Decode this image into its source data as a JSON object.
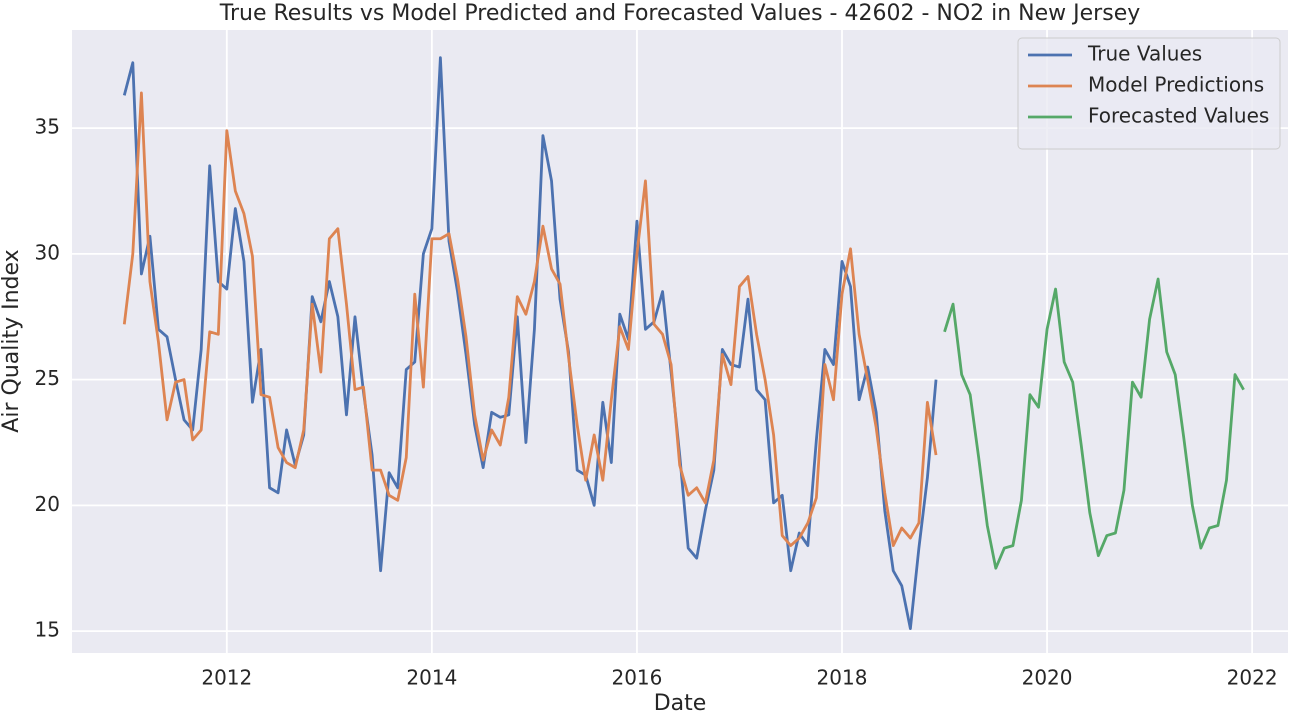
{
  "chart_data": {
    "type": "line",
    "title": "True Results vs Model Predicted and Forecasted Values - 42602 - NO2 in New Jersey",
    "x_label": "Date",
    "y_label": "Air Quality Index",
    "x": [
      2011,
      2011.083,
      2011.167,
      2011.25,
      2011.333,
      2011.417,
      2011.5,
      2011.583,
      2011.667,
      2011.75,
      2011.833,
      2011.917,
      2012,
      2012.083,
      2012.167,
      2012.25,
      2012.333,
      2012.417,
      2012.5,
      2012.583,
      2012.667,
      2012.75,
      2012.833,
      2012.917,
      2013,
      2013.083,
      2013.167,
      2013.25,
      2013.333,
      2013.417,
      2013.5,
      2013.583,
      2013.667,
      2013.75,
      2013.833,
      2013.917,
      2014,
      2014.083,
      2014.167,
      2014.25,
      2014.333,
      2014.417,
      2014.5,
      2014.583,
      2014.667,
      2014.75,
      2014.833,
      2014.917,
      2015,
      2015.083,
      2015.167,
      2015.25,
      2015.333,
      2015.417,
      2015.5,
      2015.583,
      2015.667,
      2015.75,
      2015.833,
      2015.917,
      2016,
      2016.083,
      2016.167,
      2016.25,
      2016.333,
      2016.417,
      2016.5,
      2016.583,
      2016.667,
      2016.75,
      2016.833,
      2016.917,
      2017,
      2017.083,
      2017.167,
      2017.25,
      2017.333,
      2017.417,
      2017.5,
      2017.583,
      2017.667,
      2017.75,
      2017.833,
      2017.917,
      2018,
      2018.083,
      2018.167,
      2018.25,
      2018.333,
      2018.417,
      2018.5,
      2018.583,
      2018.667,
      2018.75,
      2018.833,
      2018.917,
      2019,
      2019.083,
      2019.167,
      2019.25,
      2019.333,
      2019.417,
      2019.5,
      2019.583,
      2019.667,
      2019.75,
      2019.833,
      2019.917,
      2020,
      2020.083,
      2020.167,
      2020.25,
      2020.333,
      2020.417,
      2020.5,
      2020.583,
      2020.667,
      2020.75,
      2020.833,
      2020.917,
      2021,
      2021.083,
      2021.167,
      2021.25,
      2021.333,
      2021.417,
      2021.5,
      2021.583,
      2021.667,
      2021.75,
      2021.833,
      2021.917
    ],
    "series": [
      {
        "name": "True Values",
        "color": "#4c72b0",
        "values": [
          36.3,
          37.6,
          29.2,
          30.7,
          27.0,
          26.7,
          25.0,
          23.4,
          23.0,
          26.2,
          33.5,
          28.9,
          28.6,
          31.8,
          29.7,
          24.1,
          26.2,
          20.7,
          20.5,
          23.0,
          21.6,
          22.8,
          28.3,
          27.3,
          28.9,
          27.5,
          23.6,
          27.5,
          24.5,
          22.0,
          17.4,
          21.3,
          20.7,
          25.4,
          25.7,
          30.0,
          31.0,
          37.8,
          30.5,
          28.5,
          26.0,
          23.2,
          21.5,
          23.7,
          23.5,
          23.6,
          27.5,
          22.5,
          27.0,
          34.7,
          32.9,
          28.2,
          26.1,
          21.4,
          21.2,
          20.0,
          24.1,
          21.7,
          27.6,
          26.6,
          31.3,
          27.0,
          27.3,
          28.5,
          25.3,
          22.0,
          18.3,
          17.9,
          19.8,
          21.4,
          26.2,
          25.6,
          25.5,
          28.2,
          24.6,
          24.2,
          20.1,
          20.4,
          17.4,
          18.9,
          18.4,
          22.6,
          26.2,
          25.6,
          29.7,
          28.7,
          24.2,
          25.5,
          23.7,
          19.8,
          17.4,
          16.8,
          15.1,
          18.3,
          21.1,
          25.0,
          null,
          null,
          null,
          null,
          null,
          null,
          null,
          null,
          null,
          null,
          null,
          null,
          null,
          null,
          null,
          null,
          null,
          null,
          null,
          null,
          null,
          null,
          null,
          null,
          null,
          null,
          null,
          null,
          null,
          null,
          null,
          null,
          null,
          null,
          null,
          null
        ]
      },
      {
        "name": "Model Predictions",
        "color": "#dd8452",
        "values": [
          27.2,
          30.0,
          36.4,
          28.9,
          26.5,
          23.4,
          24.9,
          25.0,
          22.6,
          23.0,
          26.9,
          26.8,
          34.9,
          32.5,
          31.6,
          29.9,
          24.4,
          24.3,
          22.3,
          21.7,
          21.5,
          23.0,
          28.0,
          25.3,
          30.6,
          31.0,
          28.0,
          24.6,
          24.7,
          21.4,
          21.4,
          20.4,
          20.2,
          21.9,
          28.4,
          24.7,
          30.6,
          30.6,
          30.8,
          29.0,
          26.7,
          23.6,
          21.8,
          23.0,
          22.4,
          24.3,
          28.3,
          27.6,
          28.9,
          31.1,
          29.4,
          28.8,
          25.9,
          23.2,
          21.0,
          22.8,
          21.0,
          24.2,
          27.1,
          26.2,
          30.0,
          32.9,
          27.2,
          26.8,
          25.6,
          21.6,
          20.4,
          20.7,
          20.1,
          21.8,
          26.0,
          24.8,
          28.7,
          29.1,
          26.8,
          25.0,
          22.8,
          18.8,
          18.4,
          18.7,
          19.3,
          20.3,
          25.6,
          24.2,
          28.4,
          30.2,
          26.8,
          25.0,
          23.1,
          20.5,
          18.4,
          19.1,
          18.7,
          19.3,
          24.1,
          22.0,
          null,
          null,
          null,
          null,
          null,
          null,
          null,
          null,
          null,
          null,
          null,
          null,
          null,
          null,
          null,
          null,
          null,
          null,
          null,
          null,
          null,
          null,
          null,
          null,
          null,
          null,
          null,
          null,
          null,
          null,
          null,
          null,
          null,
          null,
          null,
          null
        ]
      },
      {
        "name": "Forecasted Values",
        "color": "#55a868",
        "values": [
          null,
          null,
          null,
          null,
          null,
          null,
          null,
          null,
          null,
          null,
          null,
          null,
          null,
          null,
          null,
          null,
          null,
          null,
          null,
          null,
          null,
          null,
          null,
          null,
          null,
          null,
          null,
          null,
          null,
          null,
          null,
          null,
          null,
          null,
          null,
          null,
          null,
          null,
          null,
          null,
          null,
          null,
          null,
          null,
          null,
          null,
          null,
          null,
          null,
          null,
          null,
          null,
          null,
          null,
          null,
          null,
          null,
          null,
          null,
          null,
          null,
          null,
          null,
          null,
          null,
          null,
          null,
          null,
          null,
          null,
          null,
          null,
          null,
          null,
          null,
          null,
          null,
          null,
          null,
          null,
          null,
          null,
          null,
          null,
          null,
          null,
          null,
          null,
          null,
          null,
          null,
          null,
          null,
          null,
          null,
          null,
          26.9,
          28.0,
          25.2,
          24.4,
          21.9,
          19.2,
          17.5,
          18.3,
          18.4,
          20.2,
          24.4,
          23.9,
          27.0,
          28.6,
          25.7,
          24.9,
          22.4,
          19.7,
          18.0,
          18.8,
          18.9,
          20.6,
          24.9,
          24.3,
          27.4,
          29.0,
          26.1,
          25.2,
          22.7,
          20.0,
          18.3,
          19.1,
          19.2,
          21.0,
          25.2,
          24.6
        ]
      }
    ],
    "xlim": [
      2010.49,
      2022.35
    ],
    "xticks": [
      2012,
      2014,
      2016,
      2018,
      2020,
      2022
    ],
    "ylim": [
      14.13,
      38.9
    ],
    "yticks": [
      15,
      20,
      25,
      30,
      35
    ],
    "grid": true,
    "legend": "upper right"
  }
}
